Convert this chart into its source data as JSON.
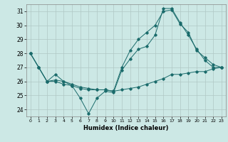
{
  "bg_color": "#cce8e5",
  "grid_color": "#b0c8c5",
  "line_color": "#1a6b6b",
  "xlabel": "Humidex (Indice chaleur)",
  "xlim": [
    -0.5,
    23.5
  ],
  "ylim": [
    23.5,
    31.5
  ],
  "yticks": [
    24,
    25,
    26,
    27,
    28,
    29,
    30,
    31
  ],
  "xticks": [
    0,
    1,
    2,
    3,
    4,
    5,
    6,
    7,
    8,
    9,
    10,
    11,
    12,
    13,
    14,
    15,
    16,
    17,
    18,
    19,
    20,
    21,
    22,
    23
  ],
  "series": [
    {
      "x": [
        0,
        1,
        2,
        3,
        4,
        5,
        6,
        7,
        8,
        9,
        10,
        11,
        12,
        13,
        14,
        15,
        16,
        17,
        18,
        19,
        20,
        21,
        22,
        23
      ],
      "y": [
        28,
        27,
        26,
        26.0,
        25.8,
        25.7,
        24.8,
        23.7,
        24.8,
        25.3,
        25.2,
        26.8,
        27.6,
        28.3,
        28.5,
        29.3,
        31.2,
        31.2,
        30.2,
        29.3,
        28.3,
        27.5,
        27.0,
        27.0
      ]
    },
    {
      "x": [
        0,
        1,
        2,
        3,
        4,
        5,
        6,
        7,
        8,
        9,
        10,
        11,
        12,
        13,
        14,
        15,
        16,
        17,
        18,
        19,
        20,
        21,
        22,
        23
      ],
      "y": [
        28,
        27,
        26,
        26.1,
        26.0,
        25.8,
        25.6,
        25.5,
        25.4,
        25.4,
        25.3,
        25.4,
        25.5,
        25.6,
        25.8,
        26.0,
        26.2,
        26.5,
        26.5,
        26.6,
        26.7,
        26.7,
        26.9,
        27.0
      ]
    },
    {
      "x": [
        0,
        1,
        2,
        3,
        4,
        5,
        6,
        7,
        8,
        9,
        10,
        11,
        12,
        13,
        14,
        15,
        16,
        17,
        18,
        19,
        20,
        21,
        22,
        23
      ],
      "y": [
        28,
        27,
        26,
        26.5,
        26.0,
        25.7,
        25.5,
        25.4,
        25.4,
        25.4,
        25.3,
        27.0,
        28.2,
        29.0,
        29.5,
        30.0,
        31.0,
        31.1,
        30.1,
        29.5,
        28.2,
        27.7,
        27.2,
        27.0
      ]
    }
  ]
}
